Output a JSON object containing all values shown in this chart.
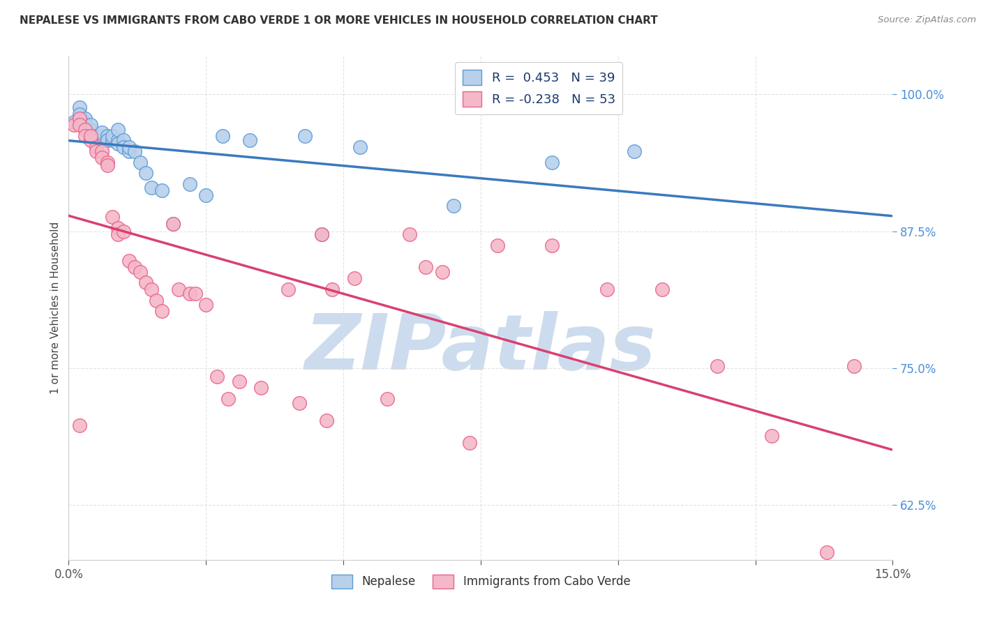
{
  "title": "NEPALESE VS IMMIGRANTS FROM CABO VERDE 1 OR MORE VEHICLES IN HOUSEHOLD CORRELATION CHART",
  "source": "Source: ZipAtlas.com",
  "ylabel": "1 or more Vehicles in Household",
  "y_ticks": [
    0.625,
    0.75,
    0.875,
    1.0
  ],
  "y_tick_labels": [
    "62.5%",
    "75.0%",
    "87.5%",
    "100.0%"
  ],
  "x_ticks": [
    0.0,
    0.025,
    0.05,
    0.075,
    0.1,
    0.125,
    0.15
  ],
  "xlim": [
    0.0,
    0.15
  ],
  "ylim": [
    0.575,
    1.035
  ],
  "nepalese_R": 0.453,
  "nepalese_N": 39,
  "caboverde_R": -0.238,
  "caboverde_N": 53,
  "nepalese_fill_color": "#b8d0eb",
  "nepalese_edge_color": "#5b9bd5",
  "caboverde_fill_color": "#f4b8c8",
  "caboverde_edge_color": "#e8638c",
  "nepalese_line_color": "#3a7abf",
  "caboverde_line_color": "#d94070",
  "watermark_color": "#ccdcee",
  "watermark_text": "ZIPatlas",
  "legend_label_nepalese": "Nepalese",
  "legend_label_caboverde": "Immigrants from Cabo Verde",
  "nepalese_x": [
    0.001,
    0.002,
    0.002,
    0.003,
    0.003,
    0.004,
    0.004,
    0.005,
    0.005,
    0.006,
    0.006,
    0.006,
    0.007,
    0.007,
    0.008,
    0.008,
    0.009,
    0.009,
    0.009,
    0.01,
    0.01,
    0.011,
    0.011,
    0.012,
    0.013,
    0.014,
    0.015,
    0.017,
    0.019,
    0.022,
    0.025,
    0.028,
    0.033,
    0.043,
    0.046,
    0.053,
    0.07,
    0.088,
    0.103
  ],
  "nepalese_y": [
    0.975,
    0.988,
    0.982,
    0.978,
    0.972,
    0.968,
    0.972,
    0.962,
    0.958,
    0.958,
    0.962,
    0.965,
    0.962,
    0.958,
    0.958,
    0.962,
    0.958,
    0.955,
    0.968,
    0.958,
    0.952,
    0.948,
    0.952,
    0.948,
    0.938,
    0.928,
    0.915,
    0.912,
    0.882,
    0.918,
    0.908,
    0.962,
    0.958,
    0.962,
    0.872,
    0.952,
    0.898,
    0.938,
    0.948
  ],
  "caboverde_x": [
    0.001,
    0.002,
    0.002,
    0.003,
    0.003,
    0.004,
    0.004,
    0.005,
    0.005,
    0.006,
    0.006,
    0.007,
    0.007,
    0.008,
    0.009,
    0.009,
    0.01,
    0.011,
    0.012,
    0.013,
    0.014,
    0.015,
    0.016,
    0.017,
    0.019,
    0.02,
    0.022,
    0.023,
    0.025,
    0.027,
    0.029,
    0.031,
    0.035,
    0.04,
    0.042,
    0.046,
    0.048,
    0.052,
    0.058,
    0.062,
    0.065,
    0.068,
    0.073,
    0.078,
    0.088,
    0.098,
    0.108,
    0.118,
    0.128,
    0.138,
    0.002,
    0.047,
    0.143
  ],
  "caboverde_y": [
    0.972,
    0.978,
    0.972,
    0.968,
    0.962,
    0.958,
    0.962,
    0.952,
    0.948,
    0.948,
    0.942,
    0.938,
    0.935,
    0.888,
    0.878,
    0.872,
    0.875,
    0.848,
    0.842,
    0.838,
    0.828,
    0.822,
    0.812,
    0.802,
    0.882,
    0.822,
    0.818,
    0.818,
    0.808,
    0.742,
    0.722,
    0.738,
    0.732,
    0.822,
    0.718,
    0.872,
    0.822,
    0.832,
    0.722,
    0.872,
    0.842,
    0.838,
    0.682,
    0.862,
    0.862,
    0.822,
    0.822,
    0.752,
    0.688,
    0.582,
    0.698,
    0.702,
    0.752
  ]
}
